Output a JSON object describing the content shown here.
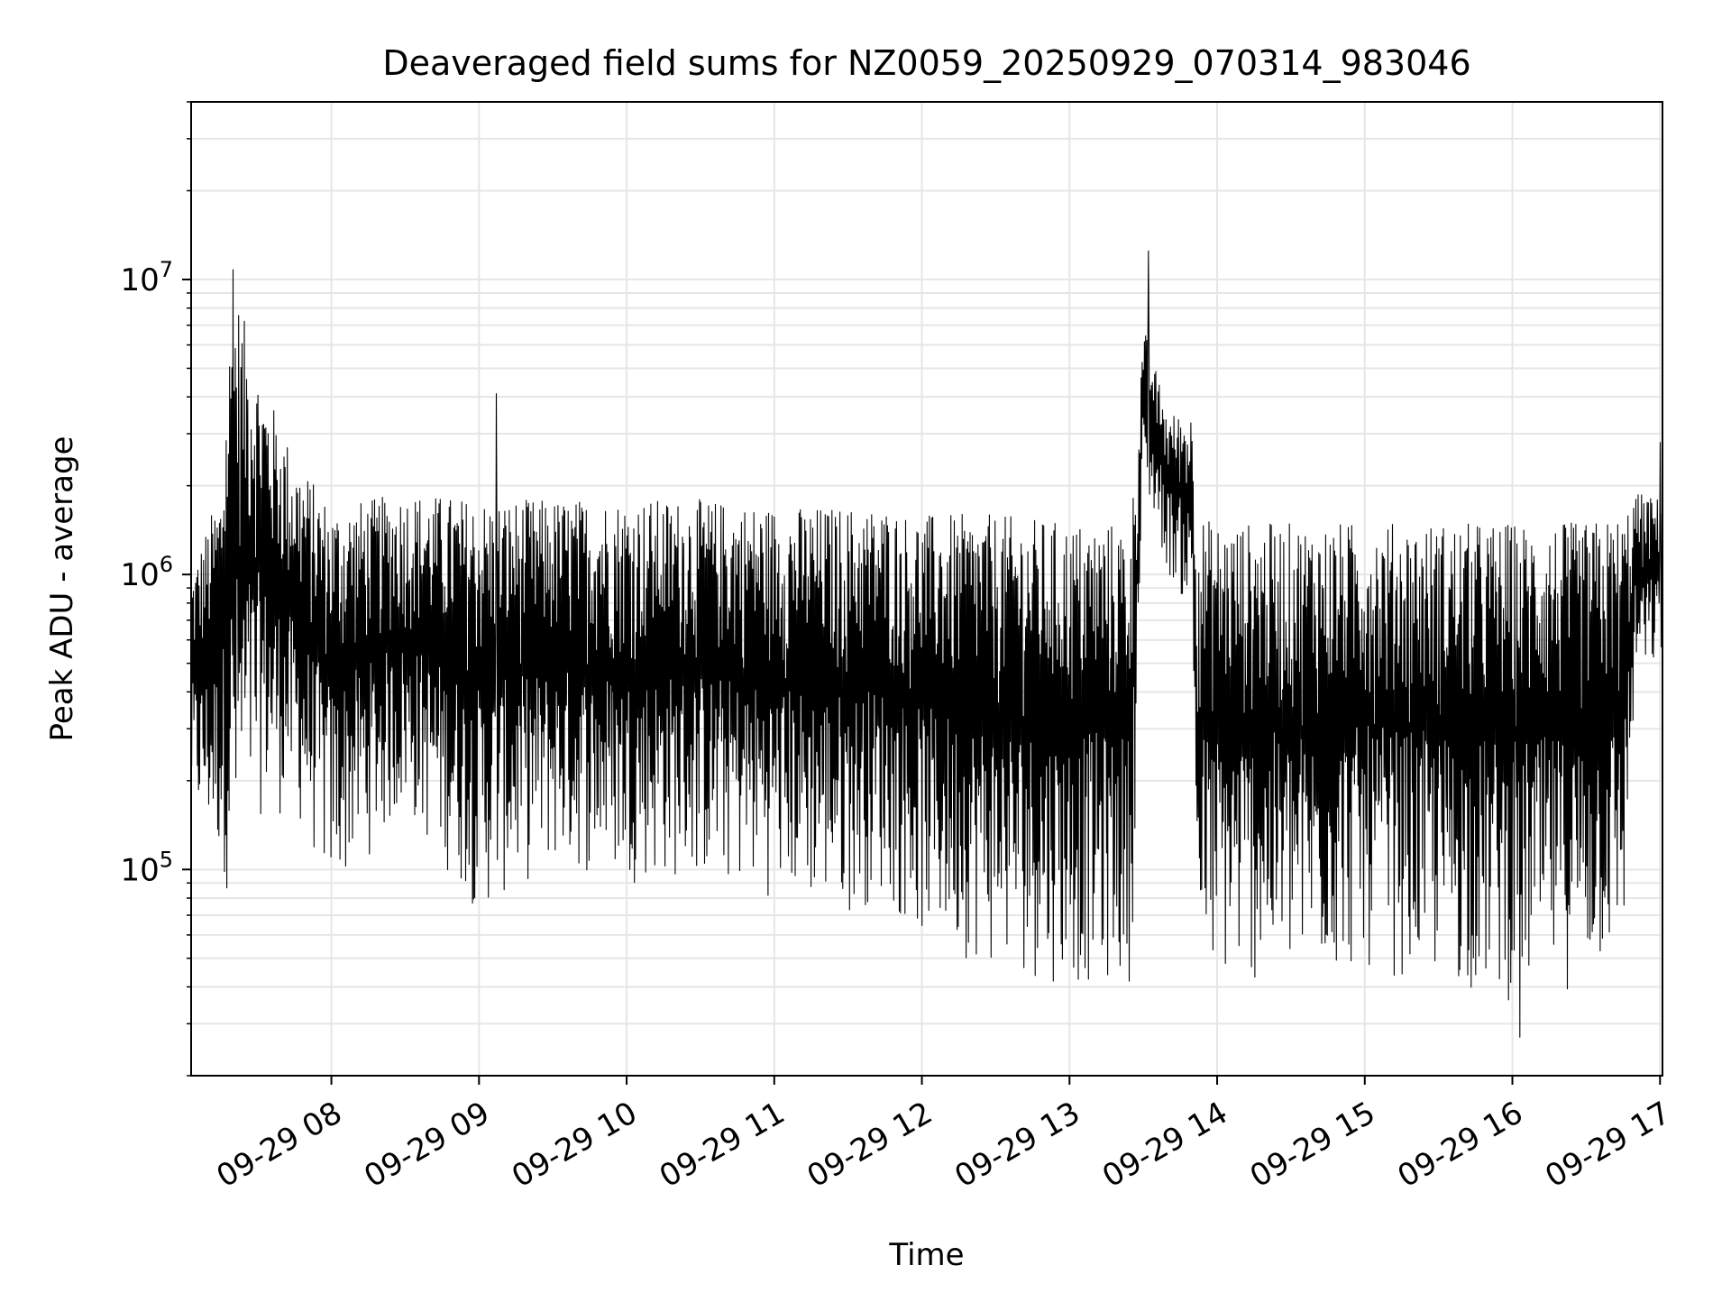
{
  "chart_data": {
    "type": "line",
    "title": "Deaveraged field sums for NZ0059_20250929_070314_983046",
    "xlabel": "Time",
    "ylabel": "Peak ADU - average",
    "yscale": "log",
    "ylim": [
      20000,
      40000000
    ],
    "xlim": [
      "2025-09-29 07:03",
      "2025-09-29 17:01"
    ],
    "grid": true,
    "line_color": "#000000",
    "grid_color": "#e6e6e6",
    "x_ticks": [
      "09-29 08",
      "09-29 09",
      "09-29 10",
      "09-29 11",
      "09-29 12",
      "09-29 13",
      "09-29 14",
      "09-29 15",
      "09-29 16",
      "09-29 17"
    ],
    "y_ticks": [
      {
        "value": 100000,
        "base": "10",
        "exp": "5"
      },
      {
        "value": 1000000,
        "base": "10",
        "exp": "6"
      },
      {
        "value": 10000000,
        "base": "10",
        "exp": "7"
      }
    ],
    "envelope": {
      "time": [
        "2025-09-29 07:03",
        "2025-09-29 07:15",
        "2025-09-29 07:20",
        "2025-09-29 07:30",
        "2025-09-29 07:45",
        "2025-09-29 08:00",
        "2025-09-29 08:30",
        "2025-09-29 09:00",
        "2025-09-29 09:30",
        "2025-09-29 10:00",
        "2025-09-29 10:30",
        "2025-09-29 11:00",
        "2025-09-29 11:30",
        "2025-09-29 11:45",
        "2025-09-29 11:55",
        "2025-09-29 12:30",
        "2025-09-29 13:00",
        "2025-09-29 13:25",
        "2025-09-29 13:30",
        "2025-09-29 13:40",
        "2025-09-29 13:50",
        "2025-09-29 13:52",
        "2025-09-29 14:00",
        "2025-09-29 14:30",
        "2025-09-29 15:00",
        "2025-09-29 15:30",
        "2025-09-29 16:00",
        "2025-09-29 16:30",
        "2025-09-29 16:45",
        "2025-09-29 16:50",
        "2025-09-29 17:01"
      ],
      "upper": [
        1000000,
        2000000,
        10000000,
        5000000,
        2500000,
        1700000,
        1900000,
        1800000,
        1800000,
        1800000,
        1800000,
        1700000,
        1700000,
        1700000,
        1600000,
        1600000,
        1500000,
        1500000,
        7000000,
        3500000,
        3500000,
        1600000,
        1500000,
        1500000,
        1500000,
        1500000,
        1500000,
        1500000,
        1600000,
        1900000,
        1800000
      ],
      "lower": [
        150000,
        100000,
        70000,
        150000,
        150000,
        80000,
        150000,
        70000,
        100000,
        90000,
        90000,
        80000,
        70000,
        80000,
        60000,
        45000,
        40000,
        40000,
        2000000,
        1000000,
        700000,
        40000,
        40000,
        40000,
        45000,
        40000,
        35000,
        40000,
        50000,
        400000,
        500000
      ]
    },
    "peaks": [
      {
        "time": "2025-09-29 07:20",
        "value": 10800000
      },
      {
        "time": "2025-09-29 13:32",
        "value": 12500000
      },
      {
        "time": "2025-09-29 09:07",
        "value": 4100000
      },
      {
        "time": "2025-09-29 17:00",
        "value": 2800000
      },
      {
        "time": "2025-09-29 16:03",
        "value": 27000
      }
    ]
  }
}
